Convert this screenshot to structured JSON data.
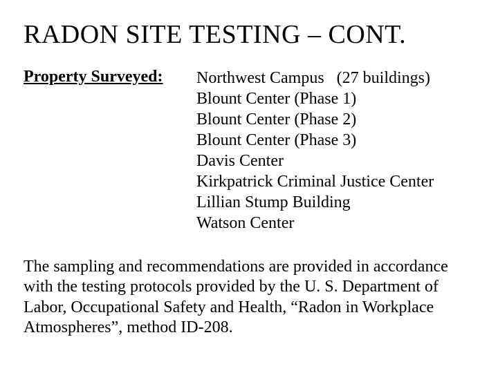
{
  "title": "RADON SITE TESTING – CONT.",
  "label": "Property Surveyed:",
  "properties": {
    "line0_a": "Northwest Campus",
    "line0_b": "(27 buildings)",
    "line1": "Blount Center (Phase 1)",
    "line2": "Blount Center (Phase 2)",
    "line3": "Blount Center (Phase 3)",
    "line4": "Davis Center",
    "line5": "Kirkpatrick Criminal Justice Center",
    "line6": "Lillian Stump Building",
    "line7": "Watson Center"
  },
  "paragraph": "The sampling and recommendations are provided in accordance with the testing protocols provided by the U. S. Department of Labor, Occupational Safety and Health, “Radon in Workplace Atmospheres”, method ID-208."
}
